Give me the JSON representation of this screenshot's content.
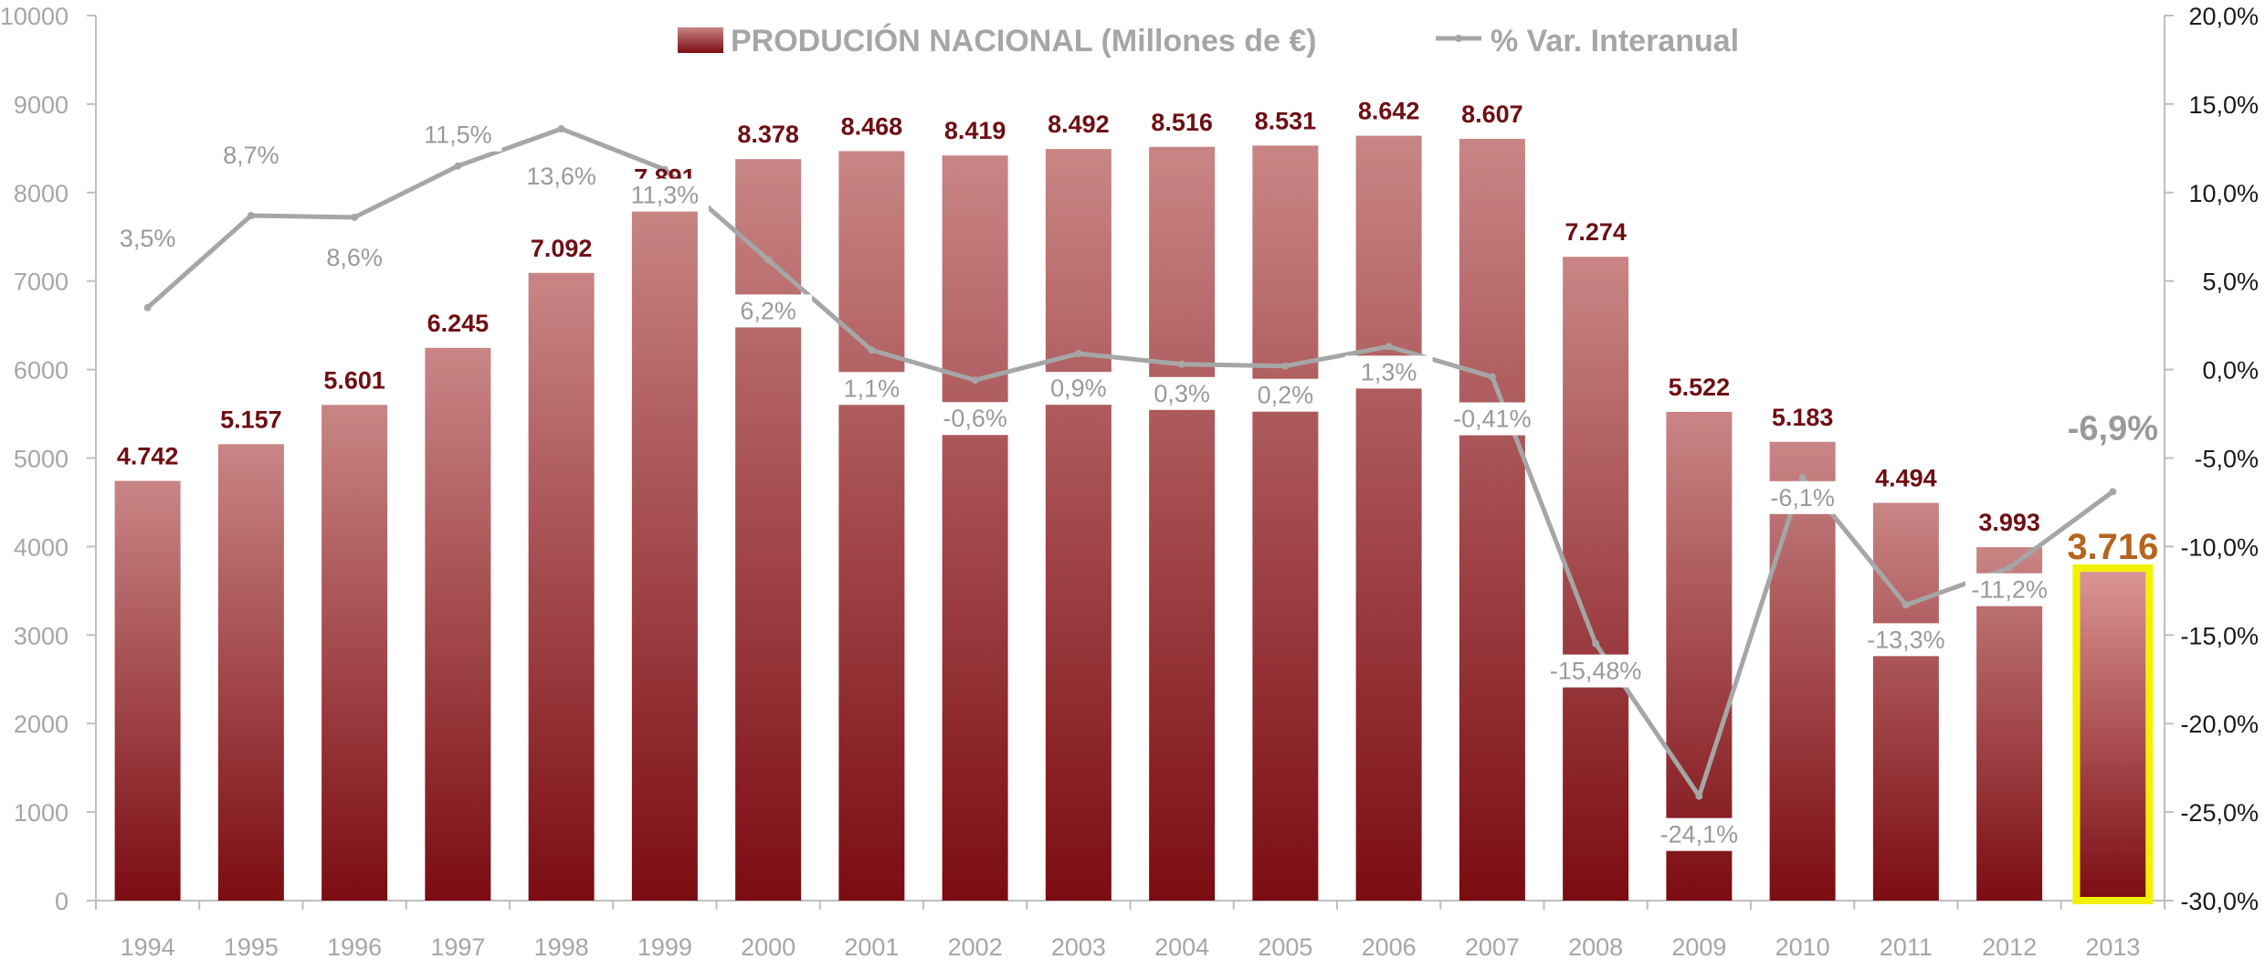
{
  "chart_data": {
    "type": "bar",
    "categories": [
      "1994",
      "1995",
      "1996",
      "1997",
      "1998",
      "1999",
      "2000",
      "2001",
      "2002",
      "2003",
      "2004",
      "2005",
      "2006",
      "2007",
      "2008",
      "2009",
      "2010",
      "2011",
      "2012",
      "2013"
    ],
    "series": [
      {
        "name": "PRODUCIÓN NACIONAL (Millones de €)",
        "type": "bar",
        "axis": "left",
        "values": [
          4742,
          5157,
          5601,
          6245,
          7092,
          7891,
          8378,
          8468,
          8419,
          8492,
          8516,
          8531,
          8642,
          8607,
          7274,
          5522,
          5183,
          4494,
          3993,
          3716
        ],
        "labels": [
          "4.742",
          "5.157",
          "5.601",
          "6.245",
          "7.092",
          "7.891",
          "8.378",
          "8.468",
          "8.419",
          "8.492",
          "8.516",
          "8.531",
          "8.642",
          "8.607",
          "7.274",
          "5.522",
          "5.183",
          "4.494",
          "3.993",
          "3.716"
        ]
      },
      {
        "name": "% Var. Interanual",
        "type": "line",
        "axis": "right",
        "values": [
          3.5,
          8.7,
          8.6,
          11.5,
          13.6,
          11.3,
          6.2,
          1.1,
          -0.6,
          0.9,
          0.3,
          0.2,
          1.3,
          -0.41,
          -15.48,
          -24.1,
          -6.1,
          -13.3,
          -11.2,
          -6.9
        ],
        "labels": [
          "3,5%",
          "8,7%",
          "8,6%",
          "11,5%",
          "13,6%",
          "11,3%",
          "6,2%",
          "1,1%",
          "-0,6%",
          "0,9%",
          "0,3%",
          "0,2%",
          "1,3%",
          "-0,41%",
          "-15,48%",
          "-24,1%",
          "-6,1%",
          "-13,3%",
          "-11,2%",
          "-6,9%"
        ]
      }
    ],
    "highlight_index": 19,
    "y_left": {
      "lim": [
        0,
        10000
      ],
      "ticks": [
        0,
        1000,
        2000,
        3000,
        4000,
        5000,
        6000,
        7000,
        8000,
        9000,
        10000
      ],
      "tick_labels": [
        "0",
        "1000",
        "2000",
        "3000",
        "4000",
        "5000",
        "6000",
        "7000",
        "8000",
        "9000",
        "10000"
      ]
    },
    "y_right": {
      "lim": [
        -30,
        20
      ],
      "ticks": [
        -30,
        -25,
        -20,
        -15,
        -10,
        -5,
        0,
        5,
        10,
        15,
        20
      ],
      "tick_labels": [
        "-30,0%",
        "-25,0%",
        "-20,0%",
        "-15,0%",
        "-10,0%",
        "-5,0%",
        "0,0%",
        "5,0%",
        "10,0%",
        "15,0%",
        "20,0%"
      ]
    },
    "legend_position": "top",
    "grid": false,
    "colors": {
      "bar_top": "#c98585",
      "bar_bottom": "#7b0c12",
      "bar_hl_top": "#da9494",
      "line": "#a6a6a6",
      "highlight_border": "#f2f200",
      "bar_label": "#6e0f14",
      "bar_label_hl": "#b5651d"
    }
  }
}
